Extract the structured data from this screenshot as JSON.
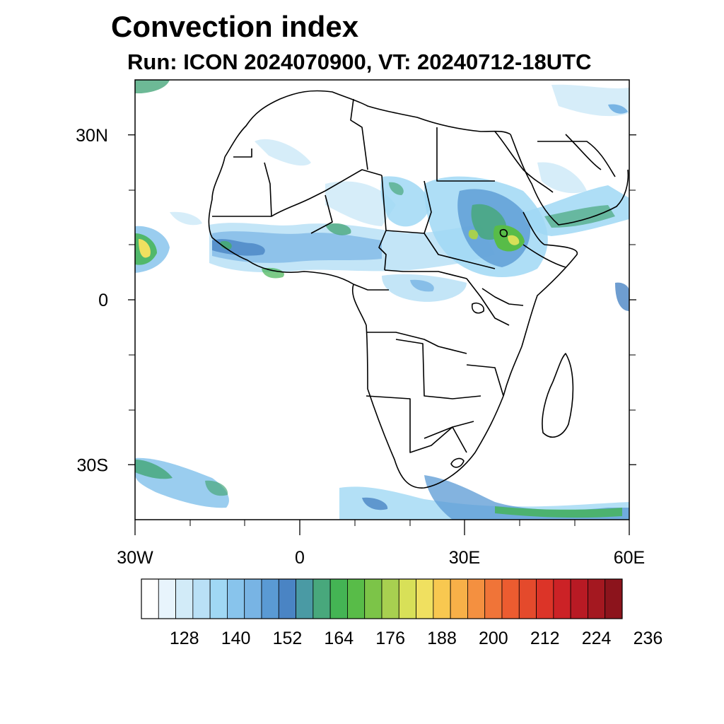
{
  "title": "Convection index",
  "subtitle": "Run: ICON 2024070900,  VT: 20240712-18UTC",
  "map": {
    "lon_range": [
      -30,
      60
    ],
    "lat_range": [
      -40,
      40
    ],
    "lat_ticks": [
      {
        "value": 30,
        "label": "30N"
      },
      {
        "value": 0,
        "label": "0"
      },
      {
        "value": -30,
        "label": "30S"
      }
    ],
    "lon_ticks": [
      {
        "value": -30,
        "label": "30W"
      },
      {
        "value": 0,
        "label": "0"
      },
      {
        "value": 30,
        "label": "30E"
      },
      {
        "value": 60,
        "label": "60E"
      }
    ]
  },
  "colorbar": {
    "colors": [
      "#ffffff",
      "#e8f4fc",
      "#d2ebf8",
      "#b9e0f6",
      "#a0d8f4",
      "#88c4ec",
      "#78b4e4",
      "#5a9ad4",
      "#4a84c4",
      "#4a9aa4",
      "#48a87c",
      "#44b454",
      "#58bc48",
      "#7cc448",
      "#a8d050",
      "#d8e058",
      "#f0e060",
      "#f8c850",
      "#f8b048",
      "#f49040",
      "#f07438",
      "#ec5c30",
      "#e44a2c",
      "#dc3428",
      "#cc2226",
      "#b81a24",
      "#a41820",
      "#8c141c"
    ],
    "labels": [
      "128",
      "140",
      "152",
      "164",
      "176",
      "188",
      "200",
      "212",
      "224",
      "236"
    ]
  }
}
